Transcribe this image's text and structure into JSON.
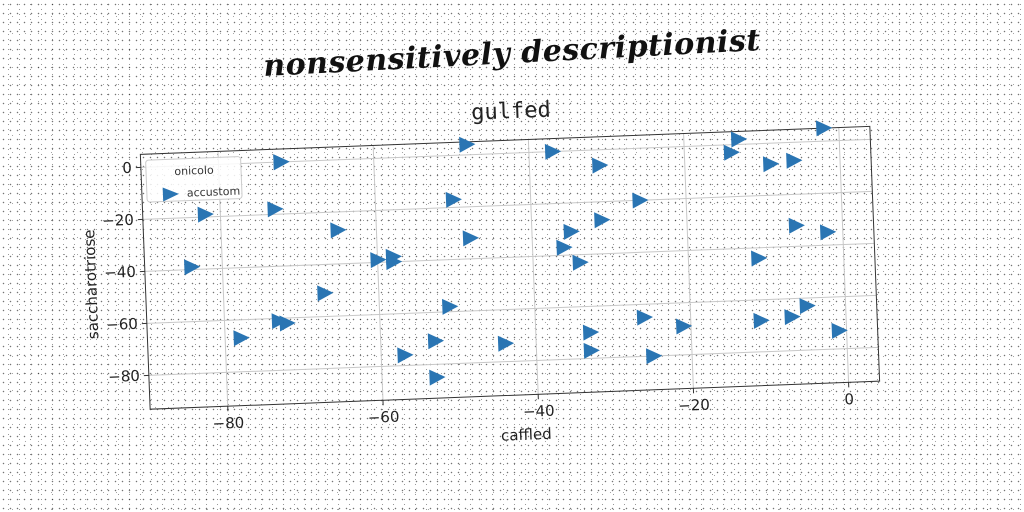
{
  "headline": "nonsensitively descriptionist",
  "colors": {
    "series": "#2a75b3",
    "grid": "#c8c8c8",
    "frame": "#333333"
  },
  "chart_data": {
    "type": "scatter",
    "title": "gulfed",
    "xlabel": "caffled",
    "ylabel": "saccharotriose",
    "xlim": [
      -90,
      4
    ],
    "ylim": [
      -93,
      5
    ],
    "xticks": [
      -80,
      -60,
      -40,
      -20,
      0
    ],
    "yticks": [
      0,
      -20,
      -40,
      -60,
      -80
    ],
    "grid": true,
    "legend": {
      "placement": "top-left",
      "title": "onicolo",
      "entries": [
        "accustom"
      ]
    },
    "series": [
      {
        "name": "accustom",
        "marker": "triangle-right",
        "x": [
          -72,
          -72,
          -48,
          -37,
          -31,
          -13,
          -2,
          -14,
          -9,
          -6,
          -82,
          -73,
          -50,
          -26,
          -65,
          -31,
          -35,
          -48,
          -6,
          -2,
          -84,
          -60,
          -58,
          -58,
          -36,
          -34,
          -11,
          -67,
          -51,
          -78,
          -73,
          -72,
          -26,
          -5,
          -53,
          -44,
          -33,
          -21,
          -11,
          -7,
          -57,
          -33,
          -25,
          -1,
          -53
        ],
        "y": [
          0,
          0,
          4,
          0,
          -6,
          2,
          5,
          -3,
          -8,
          -7,
          -19,
          -18,
          -17,
          -20,
          -27,
          -27,
          -31,
          -32,
          -32,
          -35,
          -39,
          -39,
          -38,
          -40,
          -37,
          -43,
          -44,
          -51,
          -58,
          -67,
          -61,
          -62,
          -65,
          -63,
          -71,
          -73,
          -70,
          -69,
          -68,
          -67,
          -76,
          -77,
          -80,
          -73,
          -85
        ]
      }
    ]
  }
}
